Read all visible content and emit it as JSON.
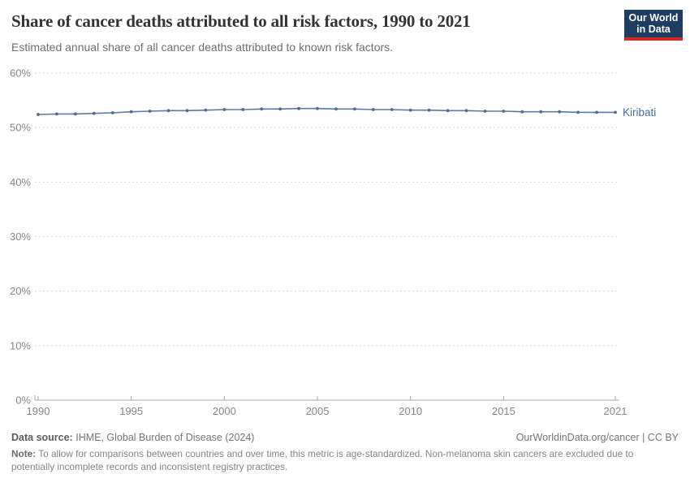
{
  "header": {
    "title": "Share of cancer deaths attributed to all risk factors, 1990 to 2021",
    "subtitle": "Estimated annual share of all cancer deaths attributed to known risk factors.",
    "logo": {
      "line1": "Our World",
      "line2": "in Data",
      "background_color": "#1d3d63",
      "accent_color": "#cf2a23"
    }
  },
  "chart_data": {
    "type": "line",
    "title": "Share of cancer deaths attributed to all risk factors, 1990 to 2021",
    "xlabel": "",
    "ylabel": "",
    "xlim": [
      1990,
      2021
    ],
    "ylim": [
      0,
      60
    ],
    "x_ticks": [
      1990,
      1995,
      2000,
      2005,
      2010,
      2015,
      2021
    ],
    "y_ticks": [
      0,
      10,
      20,
      30,
      40,
      50,
      60
    ],
    "y_tick_suffix": "%",
    "grid": "horizontal-dashed",
    "legend_position": "end-of-line-label",
    "x": [
      1990,
      1991,
      1992,
      1993,
      1994,
      1995,
      1996,
      1997,
      1998,
      1999,
      2000,
      2001,
      2002,
      2003,
      2004,
      2005,
      2006,
      2007,
      2008,
      2009,
      2010,
      2011,
      2012,
      2013,
      2014,
      2015,
      2016,
      2017,
      2018,
      2019,
      2020,
      2021
    ],
    "series": [
      {
        "name": "Kiribati",
        "color": "#4c6a9c",
        "values": [
          52.4,
          52.5,
          52.5,
          52.6,
          52.7,
          52.9,
          53.0,
          53.1,
          53.1,
          53.2,
          53.3,
          53.3,
          53.4,
          53.4,
          53.5,
          53.5,
          53.4,
          53.4,
          53.3,
          53.3,
          53.2,
          53.2,
          53.1,
          53.1,
          53.0,
          53.0,
          52.9,
          52.9,
          52.9,
          52.8,
          52.8,
          52.8
        ]
      }
    ],
    "style": {
      "gridline_color": "#dadada",
      "axis_color": "#a8a8a8",
      "tick_label_color": "#858585"
    }
  },
  "footer": {
    "data_source_label": "Data source:",
    "data_source": "IHME, Global Burden of Disease (2024)",
    "attribution": "OurWorldinData.org/cancer | CC BY",
    "note_label": "Note:",
    "note": "To allow for comparisons between countries and over time, this metric is age-standardized. Non-melanoma skin cancers are excluded due to potentially incomplete records and inconsistent registry practices."
  }
}
